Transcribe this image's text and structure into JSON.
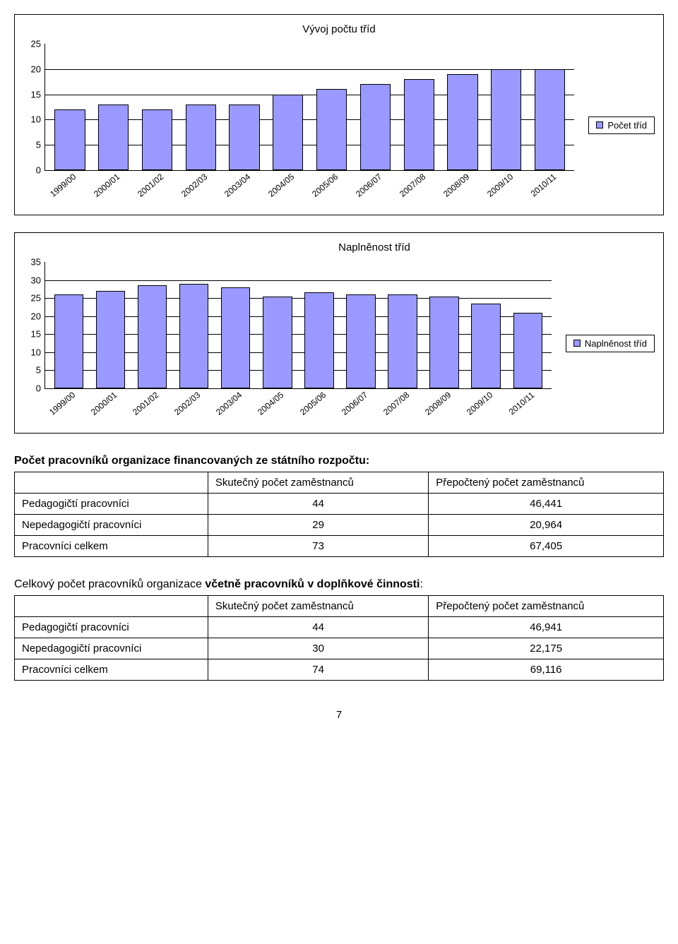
{
  "chart1": {
    "type": "bar",
    "title": "Vývoj počtu tříd",
    "categories": [
      "1999/00",
      "2000/01",
      "2001/02",
      "2002/03",
      "2003/04",
      "2004/05",
      "2005/06",
      "2006/07",
      "2007/08",
      "2008/09",
      "2009/10",
      "2010/11"
    ],
    "values": [
      12,
      13,
      12,
      13,
      13,
      15,
      16,
      17,
      18,
      19,
      20,
      20
    ],
    "ylim": [
      0,
      25
    ],
    "ytick_step": 5,
    "bar_color": "#9999ff",
    "bar_border": "#000000",
    "grid_color": "#000000",
    "background_color": "#ffffff",
    "legend_label": "Počet tříd",
    "legend_swatch": "#9999ff",
    "title_fontsize": 15,
    "label_fontsize": 13,
    "bar_width": 0.7
  },
  "chart2": {
    "type": "bar",
    "title": "Naplněnost tříd",
    "categories": [
      "1999/00",
      "2000/01",
      "2001/02",
      "2002/03",
      "2003/04",
      "2004/05",
      "2005/06",
      "2006/07",
      "2007/08",
      "2008/09",
      "2009/10",
      "2010/11"
    ],
    "values": [
      26,
      27,
      28.5,
      29,
      28,
      25.5,
      26.5,
      26,
      26,
      25.5,
      23.5,
      21
    ],
    "ylim": [
      0,
      35
    ],
    "ytick_step": 5,
    "bar_color": "#9999ff",
    "bar_border": "#000000",
    "grid_color": "#000000",
    "background_color": "#ffffff",
    "legend_label": "Naplněnost tříd",
    "legend_swatch": "#9999ff",
    "title_fontsize": 15,
    "label_fontsize": 13,
    "bar_width": 0.7
  },
  "section1": {
    "heading": "Počet pracovníků organizace financovaných ze státního rozpočtu:",
    "columns": [
      "",
      "Skutečný počet zaměstnanců",
      "Přepočtený počet zaměstnanců"
    ],
    "rows": [
      {
        "label": "Pedagogičtí pracovníci",
        "c1": "44",
        "c2": "46,441",
        "bold": false
      },
      {
        "label": "Nepedagogičtí pracovníci",
        "c1": "29",
        "c2": "20,964",
        "bold": false
      },
      {
        "label": "Pracovníci celkem",
        "c1": "73",
        "c2": "67,405",
        "bold": true
      }
    ]
  },
  "section2": {
    "heading_prefix": "Celkový počet pracovníků organizace ",
    "heading_bold": "včetně pracovníků v doplňkové činnosti",
    "heading_suffix": ":",
    "columns": [
      "",
      "Skutečný počet zaměstnanců",
      "Přepočtený počet zaměstnanců"
    ],
    "rows": [
      {
        "label": "Pedagogičtí pracovníci",
        "c1": "44",
        "c2": "46,941",
        "bold": false
      },
      {
        "label": "Nepedagogičtí pracovníci",
        "c1": "30",
        "c2": "22,175",
        "bold": false
      },
      {
        "label": "Pracovníci celkem",
        "c1": "74",
        "c2": "69,116",
        "bold": true
      }
    ]
  },
  "page_number": "7"
}
